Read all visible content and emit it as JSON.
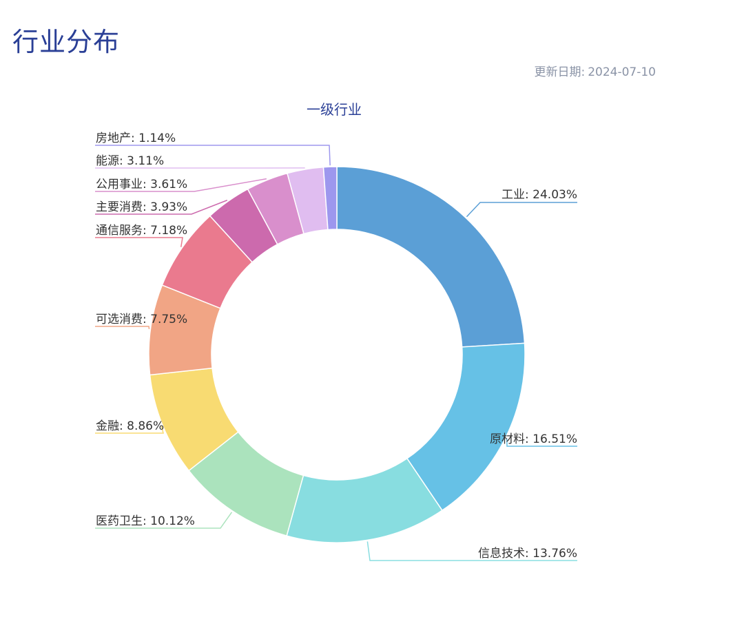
{
  "page": {
    "title": "行业分布",
    "update_label": "更新日期:",
    "update_date": "2024-07-10"
  },
  "chart_data": {
    "type": "pie",
    "variant": "donut",
    "title": "一级行业",
    "label_format": "name: percent",
    "categories": [
      "工业",
      "原材料",
      "信息技术",
      "医药卫生",
      "金融",
      "可选消费",
      "通信服务",
      "主要消费",
      "公用事业",
      "能源",
      "房地产"
    ],
    "values": [
      24.03,
      16.51,
      13.76,
      10.12,
      8.86,
      7.75,
      7.18,
      3.93,
      3.61,
      3.11,
      1.14
    ],
    "labels": [
      "工业: 24.03%",
      "原材料: 16.51%",
      "信息技术: 13.76%",
      "医药卫生: 10.12%",
      "金融: 8.86%",
      "可选消费: 7.75%",
      "通信服务: 7.18%",
      "主要消费: 3.93%",
      "公用事业: 3.61%",
      "能源: 3.11%",
      "房地产: 1.14%"
    ],
    "colors": [
      "#5b9fd6",
      "#66c1e6",
      "#88dde0",
      "#abe3bd",
      "#f8db72",
      "#f1a585",
      "#ea7a8e",
      "#cc6aad",
      "#d98fcc",
      "#e0bdf0",
      "#9d97ee"
    ],
    "legend": "none"
  }
}
